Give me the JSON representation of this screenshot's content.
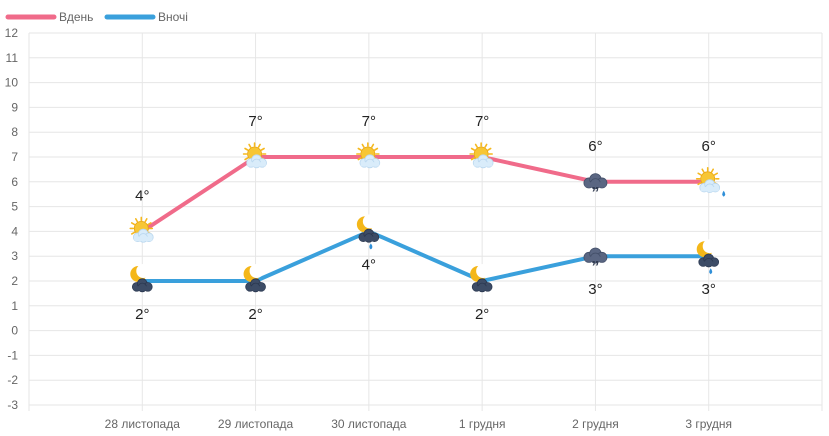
{
  "chart_data": {
    "type": "line",
    "categories": [
      "28 листопада",
      "29 листопада",
      "30 листопада",
      "1 грудня",
      "2 грудня",
      "3 грудня"
    ],
    "ylim": [
      -3,
      12
    ],
    "yticks": [
      "12",
      "11",
      "10",
      "9",
      "8",
      "7",
      "6",
      "5",
      "4",
      "3",
      "2",
      "1",
      "0",
      "-1",
      "-2",
      "-3"
    ],
    "grid": true,
    "legend_position": "top-left",
    "series": [
      {
        "name": "Вдень",
        "color": "#f06b8a",
        "values": [
          4,
          7,
          7,
          7,
          6,
          6
        ],
        "labels": [
          "4°",
          "7°",
          "7°",
          "7°",
          "6°",
          "6°"
        ],
        "icons": [
          "sun-cloud-icon",
          "sun-cloud-icon",
          "sun-cloud-icon",
          "sun-cloud-icon",
          "drizzle-cloud-icon",
          "sun-cloud-rain-icon"
        ]
      },
      {
        "name": "Вночі",
        "color": "#3aa0dc",
        "values": [
          2,
          2,
          4,
          2,
          3,
          3
        ],
        "labels": [
          "2°",
          "2°",
          "4°",
          "2°",
          "3°",
          "3°"
        ],
        "icons": [
          "moon-cloud-icon",
          "moon-cloud-icon",
          "moon-cloud-rain-icon",
          "moon-cloud-icon",
          "drizzle-cloud-icon",
          "moon-cloud-rain-icon"
        ]
      }
    ]
  }
}
